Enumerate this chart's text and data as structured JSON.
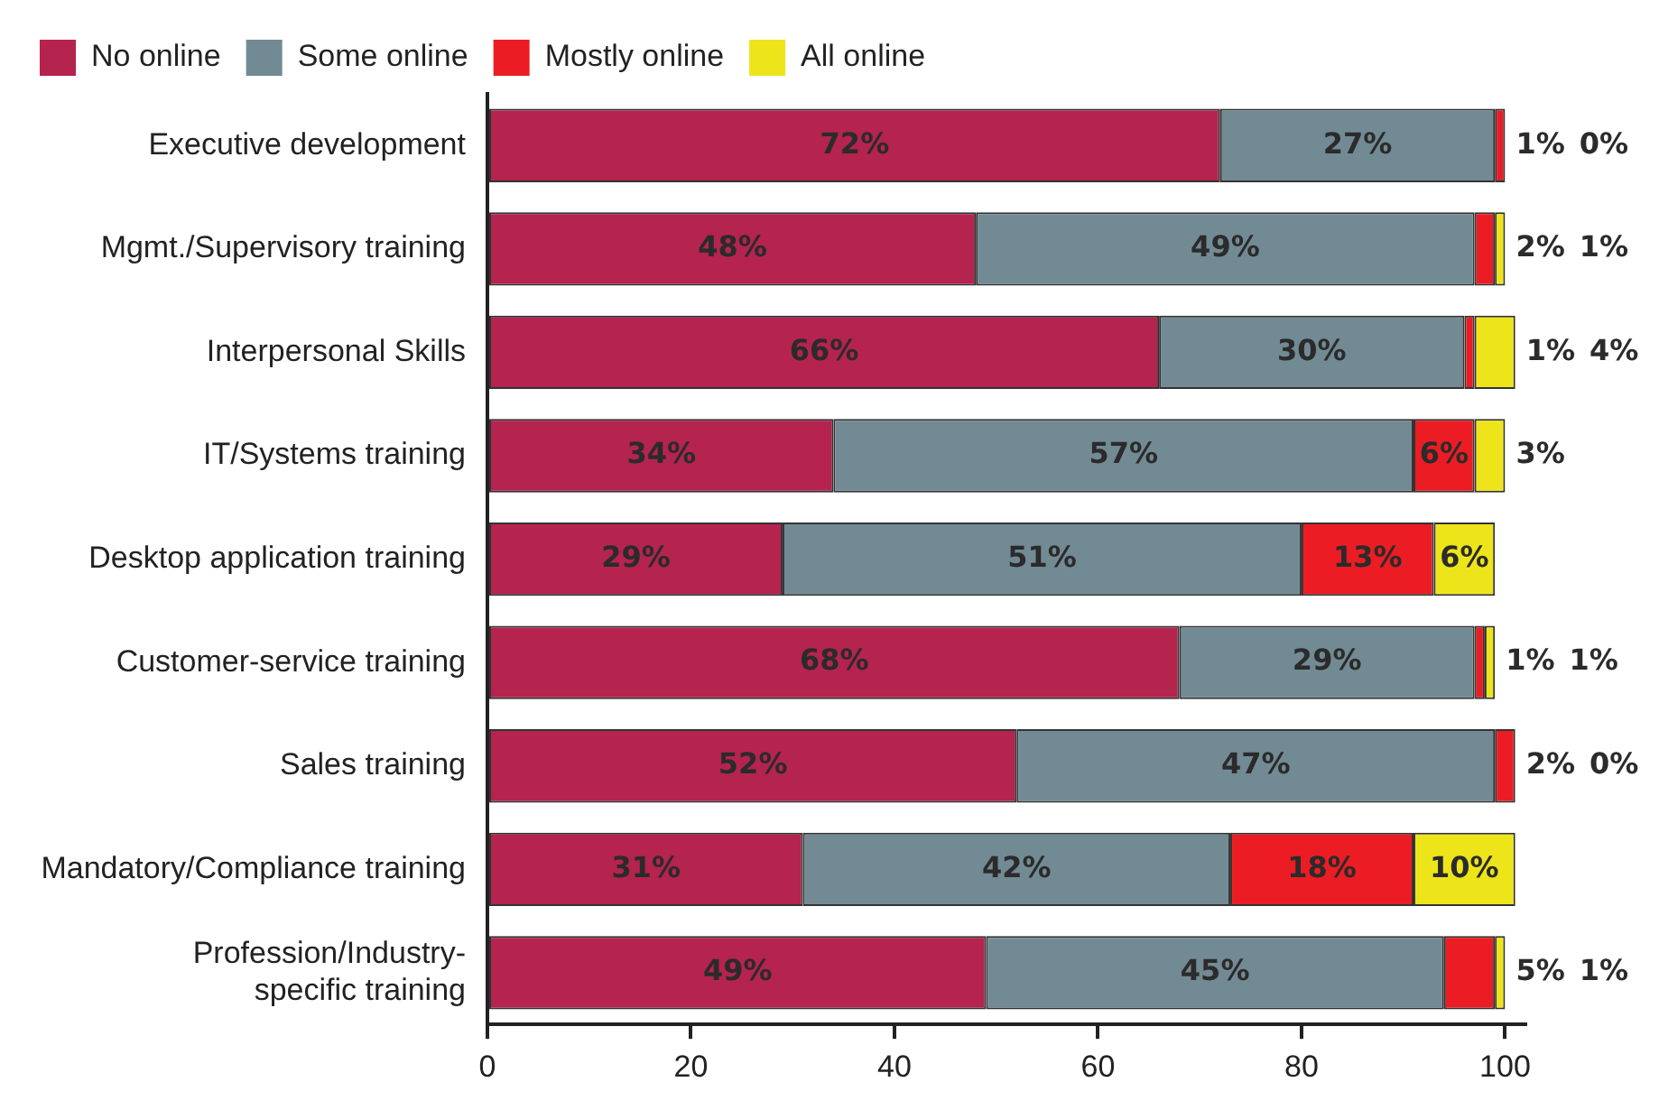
{
  "chart_data": {
    "type": "bar",
    "orientation": "horizontal",
    "stacked": true,
    "categories": [
      "Executive development",
      "Mgmt./Supervisory training",
      "Interpersonal Skills",
      "IT/Systems training",
      "Desktop application training",
      "Customer-service training",
      "Sales training",
      "Mandatory/Compliance training",
      "Profession/Industry-specific training"
    ],
    "series": [
      {
        "name": "No online",
        "color": "#b5234f",
        "values": [
          72,
          48,
          66,
          34,
          29,
          68,
          52,
          31,
          49
        ],
        "value_labels": [
          "72%",
          "48%",
          "66%",
          "34%",
          "29%",
          "68%",
          "52%",
          "31%",
          "49%"
        ]
      },
      {
        "name": "Some online",
        "color": "#728a94",
        "values": [
          27,
          49,
          30,
          57,
          51,
          29,
          47,
          42,
          45
        ],
        "value_labels": [
          "27%",
          "49%",
          "30%",
          "57%",
          "51%",
          "29%",
          "47%",
          "42%",
          "45%"
        ]
      },
      {
        "name": "Mostly online",
        "color": "#ec1c24",
        "values": [
          1,
          2,
          1,
          6,
          13,
          1,
          2,
          18,
          5
        ],
        "value_labels": [
          "1%",
          "2%",
          "1%",
          "6%",
          "13%",
          "1%",
          "2%",
          "18%",
          "5%"
        ]
      },
      {
        "name": "All online",
        "color": "#ede51a",
        "values": [
          0,
          1,
          4,
          3,
          6,
          1,
          0,
          10,
          1
        ],
        "value_labels": [
          "0%",
          "1%",
          "4%",
          "3%",
          "6%",
          "1%",
          "0%",
          "10%",
          "1%"
        ]
      }
    ],
    "xlim": [
      0,
      102
    ],
    "xticks": [
      0,
      20,
      40,
      60,
      80,
      100
    ],
    "grid": false,
    "legend": "top left"
  }
}
